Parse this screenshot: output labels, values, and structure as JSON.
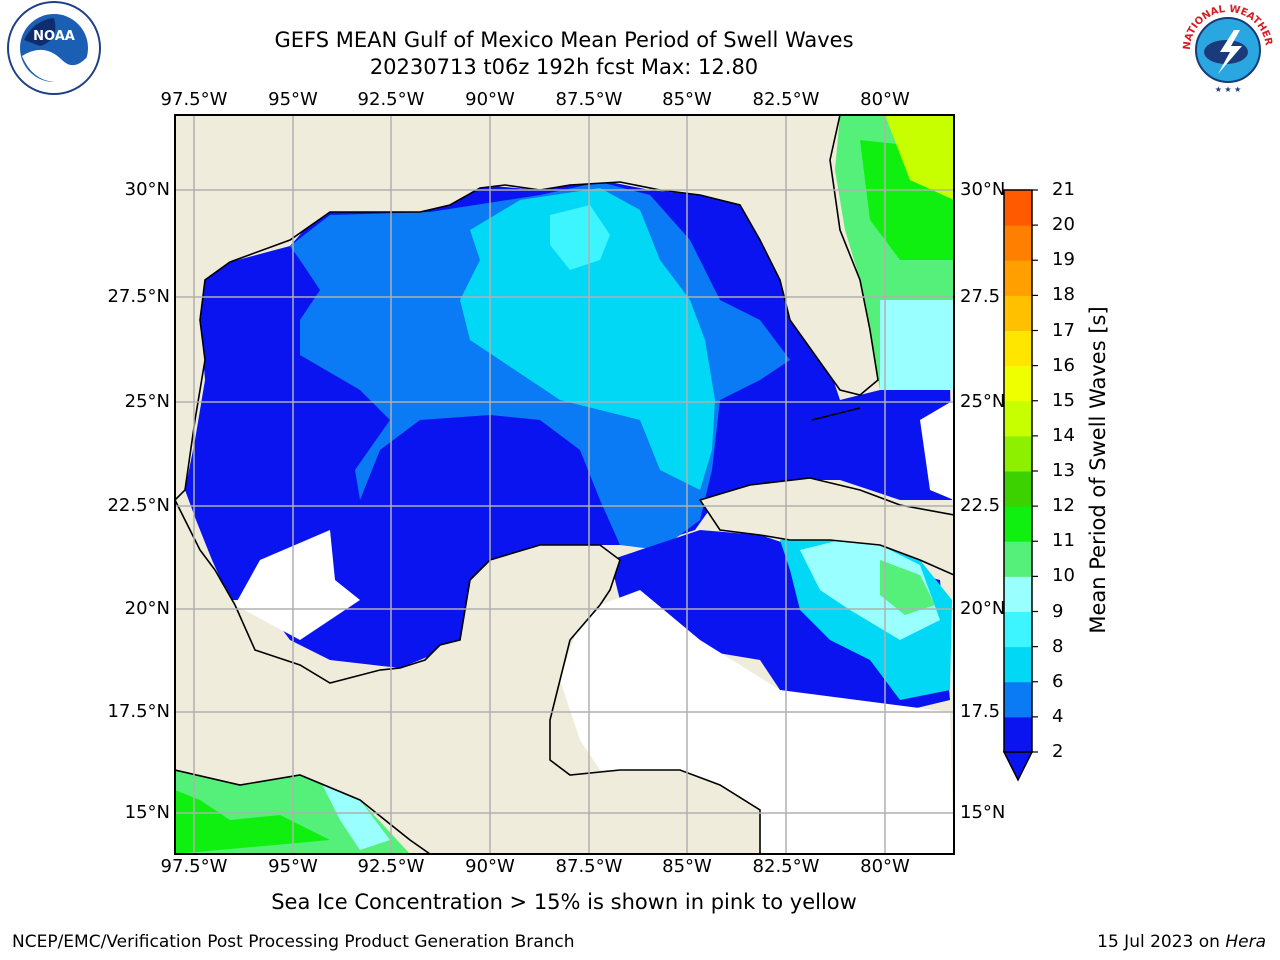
{
  "header": {
    "title_line1": "GEFS MEAN Gulf of Mexico Mean Period of Swell Waves",
    "title_line2": "20230713 t06z 192h fcst   Max: 12.80"
  },
  "logos": {
    "left": {
      "name": "noaa-logo",
      "text": "NOAA"
    },
    "right": {
      "name": "nws-logo",
      "text": "NATIONAL WEATHER SERVICE"
    }
  },
  "map": {
    "lon_ticks": [
      "97.5°W",
      "95°W",
      "92.5°W",
      "90°W",
      "87.5°W",
      "85°W",
      "82.5°W",
      "80°W"
    ],
    "lat_ticks_left": [
      "30°N",
      "27.5°N",
      "25°N",
      "22.5°N",
      "20°N",
      "17.5°N",
      "15°N"
    ],
    "lat_ticks_right": [
      "30°N",
      "27.5°N",
      "25°N",
      "22.5°N",
      "20°N",
      "17.5°N",
      "15°N"
    ],
    "colors": {
      "land": "#efecdc",
      "no_data": "#ffffff",
      "grid": "#b0b0b0",
      "coast": "#000000"
    }
  },
  "colorbar": {
    "title": "Mean Period of Swell Waves [s]",
    "levels": [
      "2",
      "4",
      "6",
      "8",
      "9",
      "10",
      "11",
      "12",
      "13",
      "14",
      "15",
      "16",
      "17",
      "18",
      "19",
      "20",
      "21"
    ],
    "colors": [
      "#0a14f0",
      "#0a7af5",
      "#00d8f5",
      "#3df5ff",
      "#99ffff",
      "#55f07a",
      "#10f010",
      "#3cd200",
      "#8cf000",
      "#c8ff00",
      "#f0ff00",
      "#ffe600",
      "#ffc000",
      "#ffa000",
      "#ff8000",
      "#ff5a00",
      "#ff3000",
      "#ff0000"
    ],
    "extend_color": "#0a14f0"
  },
  "caption": "Sea Ice Concentration > 15% is shown in pink to yellow",
  "footer": {
    "left": "NCEP/EMC/Verification Post Processing Product Generation Branch",
    "right_prefix": "15 Jul 2023 on ",
    "right_machine": "Hera"
  }
}
